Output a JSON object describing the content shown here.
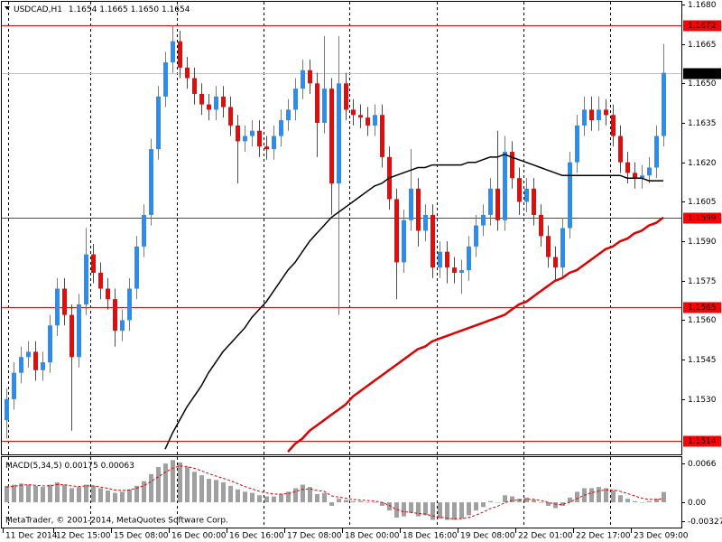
{
  "chart_data": {
    "type": "candlestick",
    "title": "USDCAD,H1",
    "header_values": [
      "1.1654",
      "1.1665",
      "1.1650",
      "1.1654"
    ],
    "categories": [
      "11 Dec 2014",
      null,
      null,
      null,
      null,
      null,
      null,
      "12 Dec 15:00",
      null,
      null,
      null,
      null,
      null,
      null,
      null,
      "15 Dec 08:00",
      null,
      null,
      null,
      null,
      null,
      null,
      null,
      "16 Dec 00:00",
      null,
      null,
      null,
      null,
      null,
      null,
      null,
      "16 Dec 16:00",
      null,
      null,
      null,
      null,
      null,
      null,
      null,
      "17 Dec 08:00",
      null,
      null,
      null,
      null,
      null,
      null,
      null,
      "18 Dec 00:00",
      null,
      null,
      null,
      null,
      null,
      null,
      null,
      "18 Dec 16:00",
      null,
      null,
      null,
      null,
      null,
      null,
      null,
      "19 Dec 08:00",
      null,
      null,
      null,
      null,
      null,
      null,
      null,
      "22 Dec 01:00",
      null,
      null,
      null,
      null,
      null,
      null,
      null,
      "22 Dec 17:00",
      null,
      null,
      null,
      null,
      null,
      null,
      null,
      "23 Dec 09:00",
      null,
      null,
      null,
      null
    ],
    "open": [
      1.1522,
      1.153,
      1.154,
      1.1546,
      1.1548,
      1.1541,
      1.1544,
      1.1558,
      1.1572,
      1.1562,
      1.1546,
      1.1566,
      1.1585,
      1.1578,
      1.1572,
      1.1568,
      1.1556,
      1.156,
      1.1572,
      1.1588,
      1.16,
      1.1625,
      1.1645,
      1.1658,
      1.1666,
      1.1656,
      1.1652,
      1.1646,
      1.1642,
      1.164,
      1.1645,
      1.1641,
      1.1634,
      1.1628,
      1.163,
      1.1632,
      1.1626,
      1.1625,
      1.163,
      1.1636,
      1.164,
      1.1648,
      1.1655,
      1.165,
      1.1635,
      1.1648,
      1.1612,
      1.165,
      1.164,
      1.1638,
      1.1637,
      1.1634,
      1.1638,
      1.1622,
      1.1606,
      1.1582,
      1.1598,
      1.161,
      1.1594,
      1.16,
      1.158,
      1.1586,
      1.158,
      1.1578,
      1.1579,
      1.1588,
      1.1596,
      1.16,
      1.161,
      1.1598,
      1.1624,
      1.1614,
      1.1605,
      1.161,
      1.16,
      1.1592,
      1.1584,
      1.158,
      1.1595,
      1.162,
      1.1634,
      1.164,
      1.1636,
      1.164,
      1.1638,
      1.163,
      1.162,
      1.1616,
      1.1614,
      1.1615,
      1.1618,
      1.163
    ],
    "high": [
      1.1534,
      1.1544,
      1.155,
      1.1552,
      1.1552,
      1.1548,
      1.1562,
      1.1576,
      1.1576,
      1.1566,
      1.157,
      1.1595,
      1.1589,
      1.1582,
      1.1576,
      1.1572,
      1.1564,
      1.1576,
      1.1592,
      1.1604,
      1.1629,
      1.1649,
      1.1662,
      1.1672,
      1.167,
      1.166,
      1.1656,
      1.165,
      1.1646,
      1.1649,
      1.1649,
      1.1645,
      1.1638,
      1.1634,
      1.1636,
      1.1636,
      1.163,
      1.1634,
      1.164,
      1.1644,
      1.1652,
      1.1659,
      1.1659,
      1.1654,
      1.1668,
      1.1652,
      1.1668,
      1.1654,
      1.1644,
      1.1642,
      1.1641,
      1.1642,
      1.1642,
      1.1626,
      1.161,
      1.1602,
      1.1625,
      1.1614,
      1.1604,
      1.1604,
      1.159,
      1.159,
      1.1584,
      1.1583,
      1.1592,
      1.16,
      1.1604,
      1.1614,
      1.1632,
      1.163,
      1.1628,
      1.1618,
      1.1614,
      1.1614,
      1.1604,
      1.1596,
      1.1588,
      1.1599,
      1.1624,
      1.1638,
      1.1645,
      1.1645,
      1.1645,
      1.1644,
      1.1642,
      1.1634,
      1.1624,
      1.162,
      1.1619,
      1.1622,
      1.1634,
      1.1665
    ],
    "low": [
      1.1515,
      1.1526,
      1.1536,
      1.1542,
      1.1537,
      1.1537,
      1.154,
      1.1554,
      1.1558,
      1.1518,
      1.1542,
      1.1562,
      1.1574,
      1.1568,
      1.1564,
      1.155,
      1.1552,
      1.1556,
      1.1568,
      1.1584,
      1.1596,
      1.1621,
      1.1641,
      1.1654,
      1.1652,
      1.1648,
      1.1642,
      1.1638,
      1.1636,
      1.1636,
      1.1637,
      1.163,
      1.1612,
      1.1624,
      1.1626,
      1.1622,
      1.1621,
      1.1621,
      1.1626,
      1.1632,
      1.1636,
      1.1644,
      1.1646,
      1.1622,
      1.1631,
      1.16,
      1.1562,
      1.1636,
      1.1634,
      1.1633,
      1.163,
      1.163,
      1.1618,
      1.1602,
      1.1568,
      1.1578,
      1.1594,
      1.1588,
      1.159,
      1.1576,
      1.1576,
      1.1574,
      1.1574,
      1.157,
      1.1575,
      1.1584,
      1.1592,
      1.1596,
      1.1594,
      1.1594,
      1.161,
      1.16,
      1.1601,
      1.1596,
      1.1588,
      1.158,
      1.1575,
      1.1576,
      1.1591,
      1.1616,
      1.163,
      1.1632,
      1.1632,
      1.1634,
      1.1626,
      1.1616,
      1.1612,
      1.161,
      1.161,
      1.1612,
      1.1614,
      1.1626
    ],
    "close": [
      1.153,
      1.154,
      1.1546,
      1.1548,
      1.1541,
      1.1544,
      1.1558,
      1.1572,
      1.1562,
      1.1546,
      1.1566,
      1.1585,
      1.1578,
      1.1572,
      1.1568,
      1.1556,
      1.156,
      1.1572,
      1.1588,
      1.16,
      1.1625,
      1.1645,
      1.1658,
      1.1666,
      1.1656,
      1.1652,
      1.1646,
      1.1642,
      1.164,
      1.1645,
      1.1641,
      1.1634,
      1.1628,
      1.163,
      1.1632,
      1.1626,
      1.1625,
      1.163,
      1.1636,
      1.164,
      1.1648,
      1.1655,
      1.165,
      1.1635,
      1.1648,
      1.1612,
      1.165,
      1.164,
      1.1638,
      1.1637,
      1.1634,
      1.1638,
      1.1622,
      1.1606,
      1.1582,
      1.1598,
      1.161,
      1.1594,
      1.16,
      1.158,
      1.1586,
      1.158,
      1.1578,
      1.1579,
      1.1588,
      1.1596,
      1.16,
      1.161,
      1.1598,
      1.1624,
      1.1614,
      1.1605,
      1.161,
      1.16,
      1.1592,
      1.1584,
      1.158,
      1.1595,
      1.162,
      1.1634,
      1.164,
      1.1636,
      1.164,
      1.1638,
      1.163,
      1.162,
      1.1616,
      1.1614,
      1.1615,
      1.1618,
      1.163,
      1.1654
    ],
    "up_color": "#1e90ff",
    "down_color": "#ff0000",
    "ylim": [
      1.1509,
      1.1681
    ],
    "yticks": [
      {
        "value": 1.168,
        "label": "1.1680"
      },
      1.1665,
      {
        "value": 1.165,
        "label": "1.1650"
      },
      1.1635,
      {
        "value": 1.162,
        "label": "1.1620"
      },
      1.1605,
      {
        "value": 1.159,
        "label": "1.1590"
      },
      1.1575,
      {
        "value": 1.156,
        "label": "1.1560"
      },
      1.1545,
      {
        "value": 1.153,
        "label": "1.1530"
      }
    ],
    "levels": [
      1.1672,
      1.1599,
      1.1565,
      1.1514
    ],
    "level_color": "#ff0000",
    "current_price": 1.1654,
    "moving_averages": [
      {
        "color": "#000000",
        "values": [
          null,
          null,
          null,
          null,
          null,
          null,
          null,
          null,
          null,
          null,
          null,
          null,
          null,
          null,
          null,
          null,
          null,
          null,
          null,
          null,
          null,
          null,
          1.1511,
          1.1517,
          1.1522,
          1.1527,
          1.1531,
          1.1535,
          1.154,
          1.1544,
          1.1548,
          1.1551,
          1.1554,
          1.1557,
          1.1561,
          1.1564,
          1.1567,
          1.1571,
          1.1575,
          1.1579,
          1.1582,
          1.1586,
          1.159,
          1.1593,
          1.1596,
          1.1599,
          1.1601,
          1.1603,
          1.1605,
          1.1607,
          1.1609,
          1.1611,
          1.1612,
          1.1614,
          1.1615,
          1.1616,
          1.1617,
          1.1618,
          1.1618,
          1.1619,
          1.1619,
          1.1619,
          1.1619,
          1.1619,
          1.162,
          1.162,
          1.1621,
          1.1622,
          1.1622,
          1.1623,
          1.1622,
          1.1621,
          1.162,
          1.1619,
          1.1618,
          1.1617,
          1.1616,
          1.1615,
          1.1615,
          1.1615,
          1.1615,
          1.1615,
          1.1615,
          1.1615,
          1.1615,
          1.1615,
          1.1614,
          1.1614,
          1.1614,
          1.1613,
          1.1613,
          1.1613
        ]
      },
      {
        "color": "#e00000",
        "values": [
          null,
          null,
          null,
          null,
          null,
          null,
          null,
          null,
          null,
          null,
          null,
          null,
          null,
          null,
          null,
          null,
          null,
          null,
          null,
          null,
          null,
          null,
          null,
          null,
          null,
          null,
          null,
          null,
          null,
          null,
          null,
          null,
          null,
          null,
          null,
          null,
          null,
          null,
          null,
          1.151,
          1.1513,
          1.1515,
          1.1518,
          1.152,
          1.1522,
          1.1524,
          1.1526,
          1.1528,
          1.1531,
          1.1533,
          1.1535,
          1.1537,
          1.1539,
          1.1541,
          1.1543,
          1.1545,
          1.1547,
          1.1549,
          1.155,
          1.1552,
          1.1553,
          1.1554,
          1.1555,
          1.1556,
          1.1557,
          1.1558,
          1.1559,
          1.156,
          1.1561,
          1.1562,
          1.1564,
          1.1566,
          1.1567,
          1.1569,
          1.1571,
          1.1573,
          1.1575,
          1.1576,
          1.1578,
          1.1579,
          1.1581,
          1.1583,
          1.1585,
          1.1587,
          1.1588,
          1.159,
          1.1591,
          1.1593,
          1.1594,
          1.1596,
          1.1597,
          1.1599
        ]
      }
    ],
    "macd": {
      "title": "MACD(5,34,5)",
      "header_values": [
        "0.00175",
        "0.00063"
      ],
      "color": "#a0a0a0",
      "signal_color": "#e00000",
      "ylim": [
        -0.0043,
        0.0077
      ],
      "yticks": [
        0.0066,
        {
          "value": 0,
          "label": "0.00"
        },
        -0.00327
      ],
      "values": [
        0.0028,
        0.003,
        0.0032,
        0.003,
        0.0028,
        0.0026,
        0.003,
        0.0034,
        0.003,
        0.0024,
        0.0026,
        0.003,
        0.0028,
        0.0024,
        0.002,
        0.0016,
        0.0018,
        0.0022,
        0.0028,
        0.0036,
        0.0048,
        0.006,
        0.0066,
        0.0072,
        0.0068,
        0.006,
        0.0052,
        0.0046,
        0.004,
        0.0038,
        0.0034,
        0.0028,
        0.0022,
        0.0018,
        0.0016,
        0.0012,
        0.001,
        0.001,
        0.0014,
        0.0018,
        0.0024,
        0.003,
        0.0026,
        0.0014,
        0.0016,
        -0.0006,
        0.0006,
        0.0004,
        0.0002,
        0.0002,
        0.0,
        0.0,
        -0.0006,
        -0.0014,
        -0.0026,
        -0.0024,
        -0.0018,
        -0.0024,
        -0.0022,
        -0.003,
        -0.0028,
        -0.003,
        -0.003,
        -0.0028,
        -0.0022,
        -0.0014,
        -0.0008,
        0.0002,
        0.0,
        0.0012,
        0.001,
        0.0006,
        0.0008,
        0.0004,
        0.0,
        -0.0006,
        -0.001,
        -0.0006,
        0.0008,
        0.0018,
        0.0024,
        0.0024,
        0.0026,
        0.0024,
        0.002,
        0.0012,
        0.0006,
        0.0002,
        0.0,
        0.0002,
        0.0006,
        0.00175
      ],
      "signal": [
        0.0026,
        0.0027,
        0.0029,
        0.003,
        0.0029,
        0.0028,
        0.0028,
        0.003,
        0.003,
        0.0028,
        0.0027,
        0.0028,
        0.0028,
        0.0026,
        0.0024,
        0.0021,
        0.002,
        0.0021,
        0.0024,
        0.0028,
        0.0035,
        0.0043,
        0.0051,
        0.0058,
        0.0062,
        0.0061,
        0.0058,
        0.0054,
        0.0049,
        0.0045,
        0.0041,
        0.0037,
        0.0032,
        0.0027,
        0.0023,
        0.0019,
        0.0016,
        0.0014,
        0.0014,
        0.0015,
        0.0018,
        0.0022,
        0.0023,
        0.002,
        0.0019,
        0.0011,
        0.0009,
        0.0007,
        0.0005,
        0.0004,
        0.0003,
        0.0002,
        0.0,
        -0.0005,
        -0.0012,
        -0.0016,
        -0.0017,
        -0.0019,
        -0.002,
        -0.0023,
        -0.0025,
        -0.0027,
        -0.0028,
        -0.0028,
        -0.0026,
        -0.0022,
        -0.0017,
        -0.0011,
        -0.0007,
        -0.0001,
        0.0003,
        0.0004,
        0.0005,
        0.0005,
        0.0003,
        0.0,
        -0.0003,
        -0.0004,
        0.0,
        0.0006,
        0.0012,
        0.0016,
        0.0019,
        0.0021,
        0.0021,
        0.0019,
        0.0015,
        0.0011,
        0.0007,
        0.0005,
        0.0005,
        0.00063
      ]
    },
    "footer": "MetaTrader, © 2001-2014, MetaQuotes Software Corp."
  }
}
